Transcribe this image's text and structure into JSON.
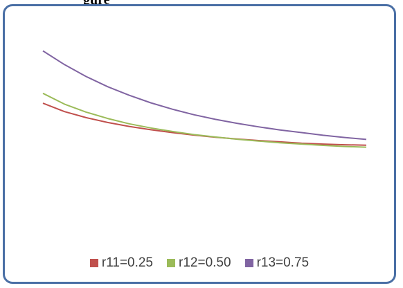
{
  "heading": "gure",
  "chart_data": {
    "type": "line",
    "title": "",
    "xlabel": "",
    "ylabel": "",
    "grid": false,
    "legend_position": "bottom",
    "x": [
      0,
      1,
      2,
      3,
      4,
      5,
      6,
      7,
      8,
      9,
      10,
      11,
      12,
      13,
      14,
      15
    ],
    "ylim": [
      0,
      1
    ],
    "series": [
      {
        "name": "r11=0.25",
        "color": "#c0504d",
        "values": [
          0.636,
          0.598,
          0.571,
          0.549,
          0.531,
          0.516,
          0.503,
          0.492,
          0.482,
          0.474,
          0.467,
          0.461,
          0.455,
          0.451,
          0.448,
          0.446
        ]
      },
      {
        "name": "r12=0.50",
        "color": "#9bbb59",
        "values": [
          0.681,
          0.632,
          0.596,
          0.567,
          0.543,
          0.524,
          0.508,
          0.494,
          0.483,
          0.473,
          0.465,
          0.457,
          0.451,
          0.445,
          0.44,
          0.437
        ]
      },
      {
        "name": "r13=0.75",
        "color": "#8064a2",
        "values": [
          0.873,
          0.811,
          0.757,
          0.711,
          0.672,
          0.638,
          0.609,
          0.584,
          0.563,
          0.545,
          0.529,
          0.515,
          0.503,
          0.491,
          0.481,
          0.472
        ]
      }
    ]
  }
}
